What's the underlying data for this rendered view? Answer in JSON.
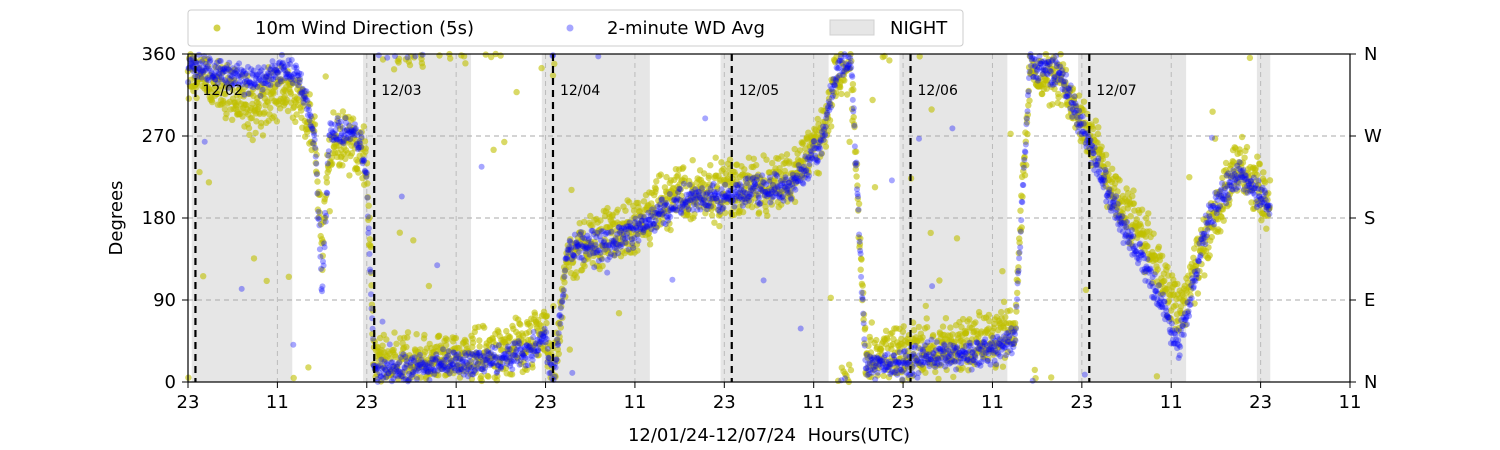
{
  "chart_data": {
    "type": "scatter",
    "xlabel": "12/01/24-12/07/24  Hours(UTC)",
    "ylabel": "Degrees",
    "xlim": [
      -1,
      155
    ],
    "ylim": [
      0,
      360
    ],
    "x_unit": "hours after 12/01 00:00 UTC",
    "x_ticks": [
      {
        "x": -1,
        "label": "23"
      },
      {
        "x": 11,
        "label": "11"
      },
      {
        "x": 23,
        "label": "23"
      },
      {
        "x": 35,
        "label": "11"
      },
      {
        "x": 47,
        "label": "23"
      },
      {
        "x": 59,
        "label": "11"
      },
      {
        "x": 71,
        "label": "23"
      },
      {
        "x": 83,
        "label": "11"
      },
      {
        "x": 95,
        "label": "23"
      },
      {
        "x": 107,
        "label": "11"
      },
      {
        "x": 119,
        "label": "23"
      },
      {
        "x": 131,
        "label": "11"
      },
      {
        "x": 143,
        "label": "23"
      },
      {
        "x": 155,
        "label": "11"
      }
    ],
    "y_ticks": [
      0,
      90,
      180,
      270,
      360
    ],
    "y_ticks_right": [
      {
        "value": 0,
        "label": "N"
      },
      {
        "value": 90,
        "label": "E"
      },
      {
        "value": 180,
        "label": "S"
      },
      {
        "value": 270,
        "label": "W"
      },
      {
        "value": 360,
        "label": "N"
      }
    ],
    "day_markers": [
      {
        "x": 0,
        "label": "12/02"
      },
      {
        "x": 24,
        "label": "12/03"
      },
      {
        "x": 48,
        "label": "12/04"
      },
      {
        "x": 72,
        "label": "12/05"
      },
      {
        "x": 96,
        "label": "12/06"
      },
      {
        "x": 120,
        "label": "12/07"
      }
    ],
    "night_periods": [
      [
        -0.5,
        13
      ],
      [
        22.5,
        37
      ],
      [
        46.5,
        61
      ],
      [
        70.5,
        85
      ],
      [
        94.5,
        109
      ],
      [
        118.5,
        133
      ],
      [
        142.5,
        144.3
      ]
    ],
    "legend": {
      "placement": "top-center",
      "entries": [
        "10m Wind Direction (5s)",
        "2-minute WD Avg",
        "NIGHT"
      ]
    },
    "series": [
      {
        "name": "10m Wind Direction (5s)",
        "color": "#bfbf00",
        "trend": [
          [
            -1,
            335
          ],
          [
            3,
            320
          ],
          [
            8,
            300
          ],
          [
            12,
            320
          ],
          [
            14,
            310
          ],
          [
            16,
            265
          ],
          [
            17,
            150
          ],
          [
            18,
            260
          ],
          [
            22,
            265
          ],
          [
            23,
            240
          ],
          [
            24,
            20
          ],
          [
            30,
            20
          ],
          [
            40,
            30
          ],
          [
            45,
            40
          ],
          [
            47,
            60
          ],
          [
            48,
            5
          ],
          [
            50,
            140
          ],
          [
            55,
            160
          ],
          [
            60,
            175
          ],
          [
            65,
            210
          ],
          [
            70,
            210
          ],
          [
            75,
            215
          ],
          [
            80,
            225
          ],
          [
            84,
            270
          ],
          [
            86,
            330
          ],
          [
            88,
            350
          ],
          [
            90,
            30
          ],
          [
            95,
            30
          ],
          [
            100,
            40
          ],
          [
            105,
            40
          ],
          [
            110,
            60
          ],
          [
            112,
            340
          ],
          [
            116,
            330
          ],
          [
            118,
            310
          ],
          [
            120,
            270
          ],
          [
            124,
            200
          ],
          [
            128,
            150
          ],
          [
            132,
            80
          ],
          [
            136,
            160
          ],
          [
            140,
            240
          ],
          [
            144,
            200
          ]
        ]
      },
      {
        "name": "2-minute WD Avg",
        "color": "#0000ff",
        "trend": [
          [
            -1,
            345
          ],
          [
            3,
            340
          ],
          [
            8,
            330
          ],
          [
            12,
            345
          ],
          [
            14,
            330
          ],
          [
            16,
            270
          ],
          [
            17,
            100
          ],
          [
            18,
            275
          ],
          [
            22,
            270
          ],
          [
            23,
            220
          ],
          [
            24,
            10
          ],
          [
            30,
            15
          ],
          [
            40,
            25
          ],
          [
            45,
            35
          ],
          [
            47,
            50
          ],
          [
            48,
            0
          ],
          [
            50,
            150
          ],
          [
            55,
            150
          ],
          [
            60,
            170
          ],
          [
            65,
            200
          ],
          [
            70,
            200
          ],
          [
            75,
            210
          ],
          [
            80,
            215
          ],
          [
            84,
            260
          ],
          [
            86,
            340
          ],
          [
            88,
            355
          ],
          [
            90,
            20
          ],
          [
            95,
            20
          ],
          [
            100,
            30
          ],
          [
            105,
            30
          ],
          [
            110,
            45
          ],
          [
            112,
            350
          ],
          [
            116,
            340
          ],
          [
            118,
            300
          ],
          [
            120,
            260
          ],
          [
            124,
            180
          ],
          [
            128,
            120
          ],
          [
            132,
            40
          ],
          [
            136,
            180
          ],
          [
            140,
            230
          ],
          [
            144,
            195
          ]
        ]
      }
    ]
  }
}
